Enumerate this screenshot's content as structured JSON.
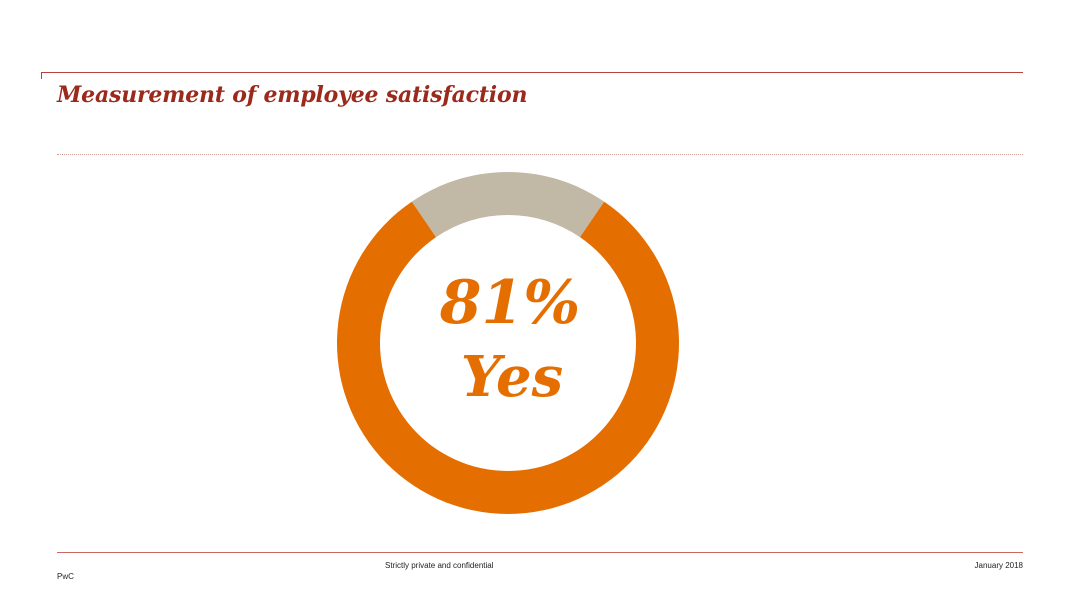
{
  "title": "Measurement of employee satisfaction",
  "chart_data": {
    "type": "pie",
    "style": "donut",
    "slices": [
      {
        "label": "Yes",
        "value": 81,
        "color": "#e56e00"
      },
      {
        "label": "",
        "value": 19,
        "color": "#c2b8a6"
      }
    ],
    "center_value": "81%",
    "center_label": "Yes"
  },
  "footer": {
    "confidential": "Strictly private and confidential",
    "date": "January 2018",
    "brand": "PwC"
  }
}
